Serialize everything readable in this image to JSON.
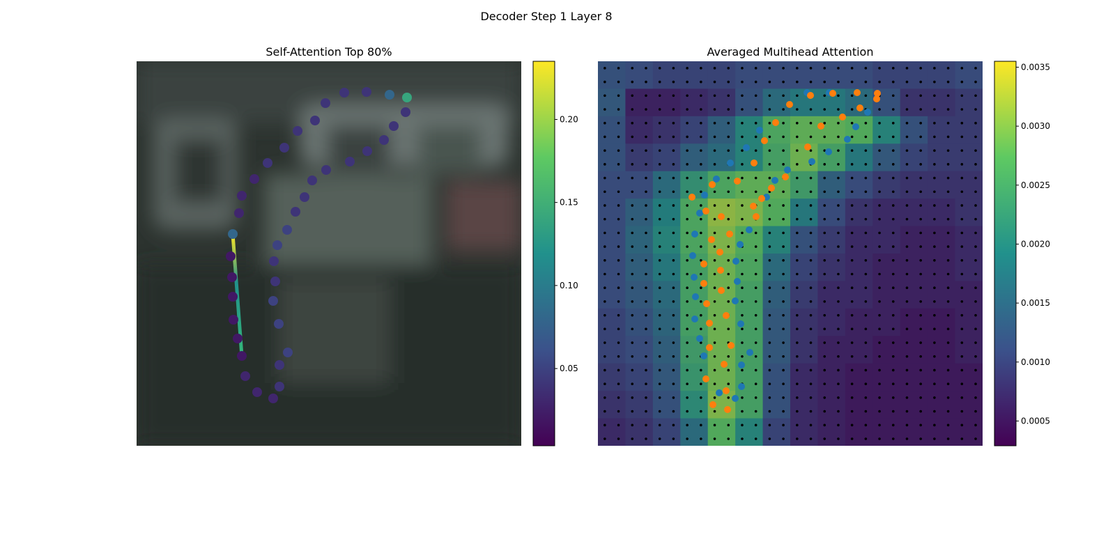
{
  "title": "Decoder Step 1 Layer 8",
  "chart_data": [
    {
      "type": "scatter",
      "title": "Self-Attention Top 80%",
      "x": [
        388,
        363,
        330,
        298,
        271,
        256,
        231,
        212,
        188,
        169,
        151,
        147,
        138,
        135,
        137,
        138,
        139,
        145,
        151,
        156,
        173,
        196,
        205,
        205,
        217,
        204,
        196,
        199,
        197,
        202,
        216,
        228,
        241,
        252,
        272,
        306,
        331,
        355,
        369,
        386
      ],
      "y": [
        52,
        48,
        44,
        45,
        60,
        85,
        100,
        124,
        146,
        169,
        193,
        218,
        248,
        280,
        310,
        338,
        371,
        398,
        423,
        452,
        475,
        484,
        467,
        436,
        418,
        377,
        344,
        316,
        287,
        264,
        242,
        216,
        195,
        171,
        156,
        144,
        129,
        113,
        93,
        73
      ],
      "values": [
        0.14,
        0.08,
        0.04,
        0.04,
        0.04,
        0.04,
        0.04,
        0.04,
        0.04,
        0.03,
        0.03,
        0.03,
        0.08,
        0.02,
        0.02,
        0.02,
        0.02,
        0.02,
        0.02,
        0.03,
        0.03,
        0.03,
        0.04,
        0.04,
        0.05,
        0.05,
        0.05,
        0.04,
        0.04,
        0.05,
        0.05,
        0.04,
        0.04,
        0.04,
        0.04,
        0.04,
        0.04,
        0.04,
        0.04,
        0.04
      ],
      "clim": [
        0.0035,
        0.235
      ],
      "cticks": [
        0.05,
        {
          "value": 0.1,
          "label": "0.10"
        },
        0.15,
        {
          "value": 0.2,
          "label": "0.20"
        }
      ]
    },
    {
      "type": "heatmap",
      "title": "Averaged Multihead Attention",
      "z": [
        [
          0.0012,
          0.0011,
          0.001,
          0.001,
          0.001,
          0.0011,
          0.0011,
          0.0011,
          0.0011,
          0.0011,
          0.001,
          0.001,
          0.001,
          0.0011
        ],
        [
          0.0013,
          0.0006,
          0.0006,
          0.0007,
          0.0008,
          0.0012,
          0.0016,
          0.0018,
          0.0018,
          0.0016,
          0.0012,
          0.0008,
          0.0008,
          0.0009
        ],
        [
          0.0012,
          0.0007,
          0.0008,
          0.001,
          0.0014,
          0.002,
          0.0026,
          0.0028,
          0.0028,
          0.0027,
          0.002,
          0.0012,
          0.0009,
          0.0009
        ],
        [
          0.0012,
          0.0009,
          0.001,
          0.0014,
          0.0016,
          0.002,
          0.0025,
          0.0029,
          0.0025,
          0.0018,
          0.0013,
          0.001,
          0.0009,
          0.0009
        ],
        [
          0.0011,
          0.0011,
          0.0016,
          0.0022,
          0.0026,
          0.0028,
          0.0028,
          0.0024,
          0.0014,
          0.0011,
          0.0009,
          0.0008,
          0.0008,
          0.0008
        ],
        [
          0.0011,
          0.0014,
          0.0019,
          0.0026,
          0.0031,
          0.003,
          0.0027,
          0.0018,
          0.0011,
          0.0008,
          0.0007,
          0.0007,
          0.0007,
          0.0008
        ],
        [
          0.0011,
          0.0015,
          0.002,
          0.0026,
          0.003,
          0.0027,
          0.002,
          0.0012,
          0.0009,
          0.0007,
          0.0007,
          0.0006,
          0.0006,
          0.0007
        ],
        [
          0.0011,
          0.0014,
          0.0018,
          0.0025,
          0.0029,
          0.0026,
          0.0016,
          0.001,
          0.0008,
          0.0007,
          0.0006,
          0.0006,
          0.0006,
          0.0007
        ],
        [
          0.0011,
          0.0013,
          0.0016,
          0.0025,
          0.0029,
          0.0025,
          0.0014,
          0.0009,
          0.0007,
          0.0007,
          0.0006,
          0.0006,
          0.0006,
          0.0006
        ],
        [
          0.001,
          0.0012,
          0.0015,
          0.0025,
          0.0029,
          0.0025,
          0.0013,
          0.0008,
          0.0007,
          0.0006,
          0.0006,
          0.0005,
          0.0005,
          0.0006
        ],
        [
          0.001,
          0.0011,
          0.0014,
          0.0024,
          0.0029,
          0.0025,
          0.0013,
          0.0008,
          0.0006,
          0.0006,
          0.0005,
          0.0005,
          0.0005,
          0.0006
        ],
        [
          0.0009,
          0.001,
          0.0013,
          0.0023,
          0.0029,
          0.0025,
          0.0012,
          0.0007,
          0.0006,
          0.0005,
          0.0005,
          0.0005,
          0.0005,
          0.0005
        ],
        [
          0.0008,
          0.0009,
          0.0012,
          0.0021,
          0.003,
          0.0025,
          0.0012,
          0.0007,
          0.0006,
          0.0005,
          0.0005,
          0.0005,
          0.0005,
          0.0005
        ],
        [
          0.0007,
          0.0008,
          0.001,
          0.0016,
          0.0027,
          0.002,
          0.001,
          0.0007,
          0.0006,
          0.0005,
          0.0005,
          0.0005,
          0.0005,
          0.0005
        ]
      ],
      "clim": [
        0.00029,
        0.00355
      ],
      "cticks": [
        0.0005,
        {
          "value": 0.001,
          "label": "0.0010"
        },
        0.0015,
        {
          "value": 0.002,
          "label": "0.0020"
        },
        0.0025,
        {
          "value": 0.003,
          "label": "0.0030"
        },
        0.0035
      ],
      "series": [
        {
          "color": "#1f77b4",
          "x": [
            300,
            332,
            387,
            370,
            358,
            331,
            307,
            272,
            254,
            242,
            232,
            213,
            190,
            170,
            153,
            146,
            217,
            139,
            204,
            136,
            198,
            138,
            200,
            140,
            197,
            139,
            205,
            146,
            218,
            152,
            206,
            206,
            174,
            197
          ],
          "y": [
            45,
            45,
            73,
            94,
            112,
            130,
            144,
            156,
            171,
            195,
            99,
            124,
            146,
            169,
            192,
            218,
            242,
            248,
            263,
            279,
            287,
            310,
            316,
            338,
            344,
            370,
            377,
            398,
            418,
            423,
            436,
            467,
            476,
            484
          ]
        },
        {
          "color": "#ff7f0e",
          "x": [
            305,
            337,
            372,
            401,
            400,
            376,
            351,
            320,
            301,
            275,
            255,
            239,
            224,
            269,
            249,
            235,
            223,
            227,
            200,
            164,
            135,
            155,
            177,
            189,
            163,
            175,
            152,
            176,
            152,
            177,
            156,
            184,
            160,
            191,
            160,
            181,
            155,
            184,
            165,
            186
          ],
          "y": [
            49,
            46,
            45,
            46,
            54,
            67,
            80,
            93,
            123,
            62,
            88,
            114,
            146,
            166,
            182,
            197,
            208,
            223,
            172,
            177,
            195,
            215,
            223,
            248,
            256,
            274,
            291,
            300,
            319,
            329,
            348,
            365,
            376,
            408,
            411,
            435,
            456,
            473,
            493,
            500
          ]
        }
      ]
    }
  ]
}
